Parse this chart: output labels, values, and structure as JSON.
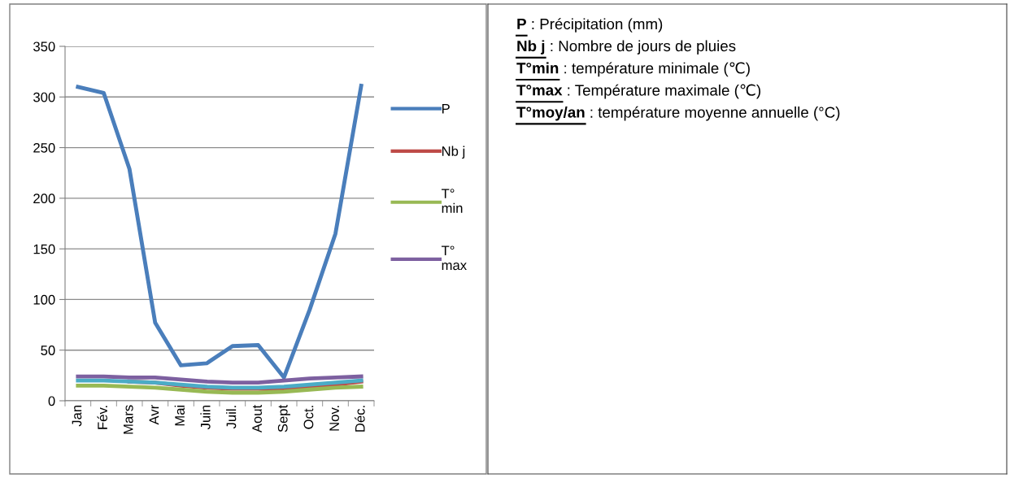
{
  "chart_data": [
    {
      "type": "line",
      "categories": [
        "Jan",
        "Fév.",
        "Mars",
        "Avr",
        "Mai",
        "Juin",
        "Juil.",
        "Aout",
        "Sept",
        "Oct.",
        "Nov.",
        "Déc."
      ],
      "series": [
        {
          "name": "P",
          "color": "#4a7ebb",
          "values": [
            310,
            304,
            229,
            77,
            35,
            37,
            54,
            55,
            23,
            90,
            165,
            311
          ]
        },
        {
          "name": "Nb j",
          "color": "#be4b48",
          "values": [
            null,
            null,
            19,
            18,
            15,
            13,
            12,
            12,
            11,
            13,
            16,
            19
          ]
        },
        {
          "name": "T° min",
          "color": "#98b954",
          "values": [
            15,
            15,
            14,
            13,
            11,
            9,
            8,
            8,
            9,
            11,
            13,
            14
          ]
        },
        {
          "name": "T° max",
          "color": "#7d60a0",
          "values": [
            24,
            24,
            23,
            23,
            21,
            19,
            18,
            18,
            20,
            22,
            23,
            24
          ]
        },
        {
          "color": "#4bacc6",
          "values": [
            20,
            20,
            19,
            18,
            16,
            14,
            13,
            13,
            14,
            16,
            18,
            20
          ]
        }
      ],
      "ylim": [
        0,
        350
      ],
      "yticks": [
        0,
        50,
        100,
        150,
        200,
        250,
        300,
        350
      ],
      "grid": "y",
      "legend": "right",
      "marker": "none",
      "line_style": "solid"
    },
    {
      "type": "other",
      "annotations": [
        "P : Précipitation (mm)",
        "Nb j : Nombre de jours de pluies",
        "T°min : température minimale (℃)",
        "T°max : Température maximale (℃)",
        "T°moy/an : température moyenne annuelle (°C)"
      ]
    }
  ]
}
